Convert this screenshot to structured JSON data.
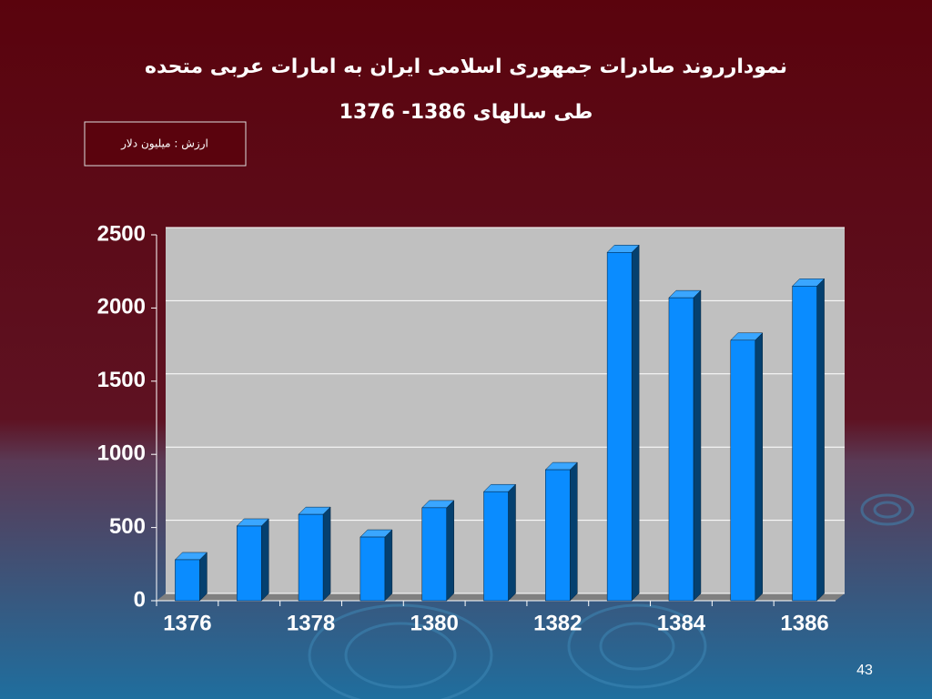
{
  "chart_data": {
    "type": "bar",
    "title": "نمودارروند صادرات جمهوری اسلامی ایران به امارات عربی متحده",
    "subtitle": "طی سالهای 1386- 1376",
    "unit_note": "ارزش : میلیون دلار",
    "categories": [
      "1376",
      null,
      "1378",
      null,
      "1380",
      null,
      "1382",
      null,
      "1384",
      null,
      "1386"
    ],
    "values": [
      280,
      510,
      590,
      435,
      635,
      745,
      895,
      2380,
      2070,
      1780,
      2150
    ],
    "color": "#0a8cff",
    "ylim": [
      0,
      2500
    ],
    "yticks": [
      0,
      500,
      1000,
      1500,
      2000,
      2500
    ],
    "grid": true
  },
  "slide_number": "43"
}
